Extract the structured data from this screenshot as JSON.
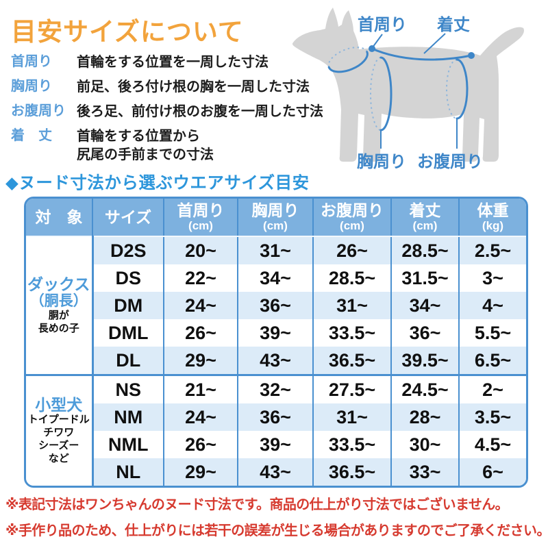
{
  "title": "目安サイズについて",
  "legend": {
    "items": [
      {
        "term": "首周り",
        "desc": "首輪をする位置を一周した寸法"
      },
      {
        "term": "胸周り",
        "desc": "前足、後ろ付け根の胸を一周した寸法"
      },
      {
        "term": "お腹周り",
        "desc": "後ろ足、前付け根のお腹を一周した寸法"
      },
      {
        "term": "着　丈",
        "desc": "首輪をする位置から",
        "desc2": "尻尾の手前までの寸法"
      }
    ]
  },
  "diagram": {
    "labels": {
      "neck": "首周り",
      "length": "着丈",
      "chest": "胸周り",
      "belly": "お腹周り"
    }
  },
  "section_title": "◆ヌード寸法から選ぶウエアサイズ目安",
  "table": {
    "headers": [
      {
        "label": "対　象",
        "unit": ""
      },
      {
        "label": "サイズ",
        "unit": ""
      },
      {
        "label": "首周り",
        "unit": "(cm)"
      },
      {
        "label": "胸周り",
        "unit": "(cm)"
      },
      {
        "label": "お腹周り",
        "unit": "(cm)"
      },
      {
        "label": "着丈",
        "unit": "(cm)"
      },
      {
        "label": "体重",
        "unit": "(kg)"
      }
    ],
    "groups": [
      {
        "main": "ダックス",
        "sub": "（胴長）",
        "notes": [
          "胴が",
          "長めの子"
        ],
        "rows": [
          {
            "size": "D2S",
            "values": [
              "20~",
              "31~",
              "26~",
              "28.5~",
              "2.5~"
            ]
          },
          {
            "size": "DS",
            "values": [
              "22~",
              "34~",
              "28.5~",
              "31.5~",
              "3~"
            ]
          },
          {
            "size": "DM",
            "values": [
              "24~",
              "36~",
              "31~",
              "34~",
              "4~"
            ]
          },
          {
            "size": "DML",
            "values": [
              "26~",
              "39~",
              "33.5~",
              "36~",
              "5.5~"
            ]
          },
          {
            "size": "DL",
            "values": [
              "29~",
              "43~",
              "36.5~",
              "39.5~",
              "6.5~"
            ]
          }
        ]
      },
      {
        "main": "小型犬",
        "sub": "",
        "notes": [
          "トイプードル",
          "チワワ",
          "シーズー",
          "など"
        ],
        "rows": [
          {
            "size": "NS",
            "values": [
              "21~",
              "32~",
              "27.5~",
              "24.5~",
              "2~"
            ]
          },
          {
            "size": "NM",
            "values": [
              "24~",
              "36~",
              "31~",
              "28~",
              "3.5~"
            ]
          },
          {
            "size": "NML",
            "values": [
              "26~",
              "39~",
              "33.5~",
              "30~",
              "4.5~"
            ]
          },
          {
            "size": "NL",
            "values": [
              "29~",
              "43~",
              "36.5~",
              "33~",
              "6~"
            ]
          }
        ]
      }
    ]
  },
  "notes": [
    "※表記寸法はワンちゃんのヌード寸法です。商品の仕上がり寸法ではございません。",
    "※手作り品のため、仕上がりには若干の誤差が生じる場合がありますのでご了承ください。"
  ],
  "colors": {
    "title_orange": "#F2A33C",
    "legend_blue": "#5B9ED9",
    "section_blue": "#2D96DB",
    "table_header_bg": "#7DB1DF",
    "table_border": "#4A90D0",
    "row_alt_blue": "#DCEBF8",
    "note_red": "#D63A2F",
    "dog_gray": "#D4D4D4",
    "diagram_blue": "#3E86C8"
  }
}
